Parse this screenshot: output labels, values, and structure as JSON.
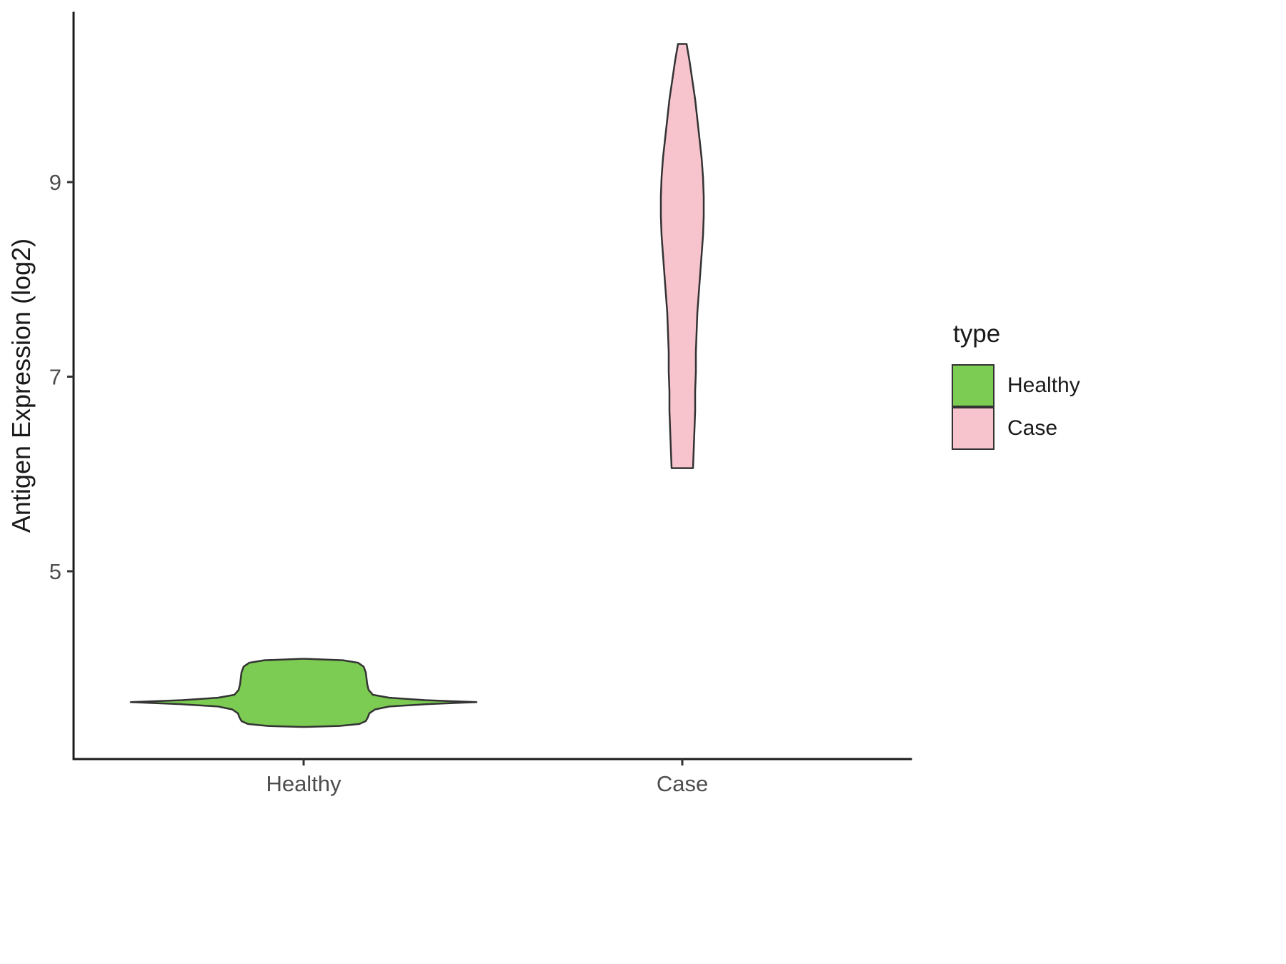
{
  "figure": {
    "background": "#FFFFFF"
  },
  "axes": {
    "axis_color": "#1A1A1A",
    "tick_color": "#333333",
    "tick_label_color": "#4D4D4D"
  },
  "legend": {
    "title": "type",
    "items": [
      {
        "label": "Healthy",
        "color": "#7CCB52"
      },
      {
        "label": "Case",
        "color": "#F7C4CE"
      }
    ]
  },
  "chart_data": {
    "type": "violin",
    "title": "",
    "xlabel": "",
    "ylabel": "Antigen Expression (log2)",
    "categories": [
      "Healthy",
      "Case"
    ],
    "yticks": [
      9,
      7,
      5
    ],
    "ylim": [
      3.0,
      10.75
    ],
    "grid": false,
    "legend_position": "right",
    "outline_color": "#333333",
    "series": [
      {
        "name": "Healthy",
        "fill": "#7CCB52",
        "value_range": [
          3.4,
          4.1
        ],
        "profile": [
          [
            4.1,
            4
          ],
          [
            4.085,
            55
          ],
          [
            4.06,
            76
          ],
          [
            4.02,
            84
          ],
          [
            3.96,
            87
          ],
          [
            3.9,
            88
          ],
          [
            3.84,
            89
          ],
          [
            3.78,
            91
          ],
          [
            3.73,
            97
          ],
          [
            3.7,
            120
          ],
          [
            3.675,
            170
          ],
          [
            3.655,
            242
          ],
          [
            3.635,
            175
          ],
          [
            3.61,
            120
          ],
          [
            3.58,
            100
          ],
          [
            3.54,
            92
          ],
          [
            3.5,
            90
          ],
          [
            3.46,
            87
          ],
          [
            3.43,
            78
          ],
          [
            3.41,
            50
          ],
          [
            3.4,
            4
          ]
        ]
      },
      {
        "name": "Case",
        "fill": "#F7C4CE",
        "value_range": [
          6.06,
          10.42
        ],
        "profile": [
          [
            10.42,
            6
          ],
          [
            10.25,
            10
          ],
          [
            10.05,
            14
          ],
          [
            9.85,
            18
          ],
          [
            9.65,
            21
          ],
          [
            9.45,
            24
          ],
          [
            9.25,
            27
          ],
          [
            9.05,
            29
          ],
          [
            8.85,
            30
          ],
          [
            8.65,
            30
          ],
          [
            8.45,
            29
          ],
          [
            8.25,
            27
          ],
          [
            8.05,
            25
          ],
          [
            7.85,
            23
          ],
          [
            7.65,
            21
          ],
          [
            7.45,
            20
          ],
          [
            7.25,
            19
          ],
          [
            7.05,
            19
          ],
          [
            6.85,
            18
          ],
          [
            6.65,
            18
          ],
          [
            6.45,
            17
          ],
          [
            6.25,
            16
          ],
          [
            6.06,
            15
          ]
        ]
      }
    ]
  }
}
